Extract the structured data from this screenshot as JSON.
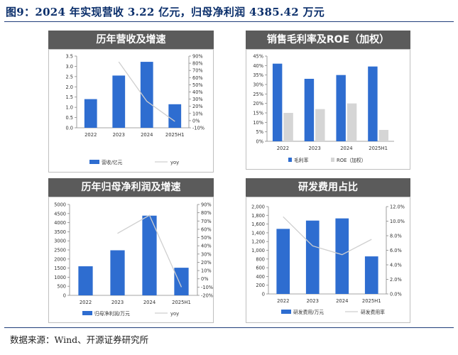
{
  "figure": {
    "title": "图9：2024 年实现营收 3.22 亿元，归母净利润 4385.42 万元",
    "source": "数据来源：Wind、开源证券研究所"
  },
  "colors": {
    "bar_blue": "#2e6dd0",
    "bar_gray": "#d5d5d5",
    "line_gray": "#cfcfcf",
    "header_bg": "#5b5b5b",
    "title_blue": "#0b2f6b"
  },
  "chart_data": [
    {
      "id": "revenue",
      "type": "bar",
      "title": "历年营收及增速",
      "categories": [
        "2022",
        "2023",
        "2024",
        "2025H1"
      ],
      "series": [
        {
          "name": "营收/亿元",
          "kind": "bar",
          "axis": "left",
          "values": [
            1.4,
            2.55,
            3.22,
            1.15
          ]
        },
        {
          "name": "yoy",
          "kind": "line",
          "axis": "right",
          "values": [
            null,
            82,
            27,
            -1
          ]
        }
      ],
      "left_axis": {
        "min": 0,
        "max": 3.5,
        "step": 0.5,
        "ticks": [
          "0.0",
          "0.5",
          "1.0",
          "1.5",
          "2.0",
          "2.5",
          "3.0",
          "3.5"
        ]
      },
      "right_axis": {
        "min": -10,
        "max": 90,
        "step": 10,
        "ticks": [
          "-10%",
          "0%",
          "10%",
          "20%",
          "30%",
          "40%",
          "50%",
          "60%",
          "70%",
          "80%",
          "90%"
        ]
      },
      "legend": [
        "营收/亿元",
        "yoy"
      ]
    },
    {
      "id": "margin",
      "type": "bar",
      "title": "销售毛利率及ROE（加权）",
      "categories": [
        "2022",
        "2023",
        "2024",
        "2025H1"
      ],
      "series": [
        {
          "name": "毛利率",
          "kind": "bar",
          "axis": "left",
          "values": [
            41,
            33,
            35,
            39.5
          ]
        },
        {
          "name": "ROE（加权）",
          "kind": "bar",
          "axis": "left",
          "values": [
            15,
            17,
            20,
            6
          ]
        }
      ],
      "left_axis": {
        "min": 0,
        "max": 45,
        "step": 5,
        "ticks": [
          "0%",
          "5%",
          "10%",
          "15%",
          "20%",
          "25%",
          "30%",
          "35%",
          "40%",
          "45%"
        ]
      },
      "legend": [
        "毛利率",
        "ROE（加权）"
      ]
    },
    {
      "id": "netprofit",
      "type": "bar",
      "title": "历年归母净利润及增速",
      "categories": [
        "2022",
        "2023",
        "2024",
        "2025H1"
      ],
      "series": [
        {
          "name": "归母净利润/万元",
          "kind": "bar",
          "axis": "left",
          "values": [
            1600,
            2480,
            4385,
            1520
          ]
        },
        {
          "name": "yoy",
          "kind": "line",
          "axis": "right",
          "values": [
            null,
            55,
            77,
            -10
          ]
        }
      ],
      "left_axis": {
        "min": 0,
        "max": 5000,
        "step": 500,
        "ticks": [
          "0",
          "500",
          "1000",
          "1500",
          "2000",
          "2500",
          "3000",
          "3500",
          "4000",
          "4500",
          "5000"
        ]
      },
      "right_axis": {
        "min": -20,
        "max": 90,
        "step": 10,
        "ticks": [
          "-20%",
          "-10%",
          "0%",
          "10%",
          "20%",
          "30%",
          "40%",
          "50%",
          "60%",
          "70%",
          "80%",
          "90%"
        ]
      },
      "legend": [
        "归母净利润/万元",
        "yoy"
      ]
    },
    {
      "id": "rd",
      "type": "bar",
      "title": "研发费用占比",
      "categories": [
        "2022",
        "2023",
        "2024",
        "2025H1"
      ],
      "series": [
        {
          "name": "研发费用/万元",
          "kind": "bar",
          "axis": "left",
          "values": [
            1490,
            1680,
            1730,
            860
          ]
        },
        {
          "name": "研发费用率",
          "kind": "line",
          "axis": "right",
          "values": [
            10.6,
            6.6,
            5.4,
            7.5
          ]
        }
      ],
      "left_axis": {
        "min": 0,
        "max": 2000,
        "step": 200,
        "ticks": [
          "0",
          "200",
          "400",
          "600",
          "800",
          "1,000",
          "1,200",
          "1,400",
          "1,600",
          "1,800",
          "2,000"
        ]
      },
      "right_axis": {
        "min": 0,
        "max": 12,
        "step": 2,
        "ticks": [
          "0.0%",
          "2.0%",
          "4.0%",
          "6.0%",
          "8.0%",
          "10.0%",
          "12.0%"
        ]
      },
      "legend": [
        "研发费用/万元",
        "研发费用率"
      ]
    }
  ]
}
